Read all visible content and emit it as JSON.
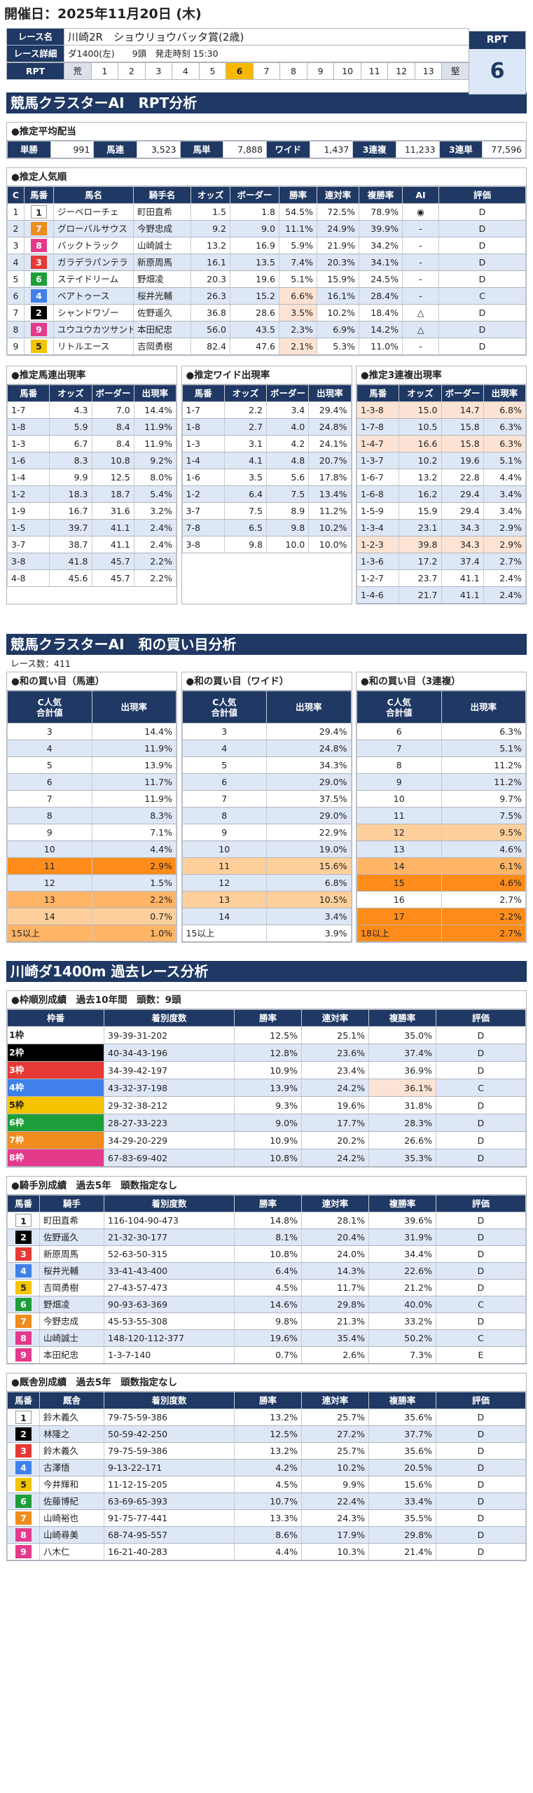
{
  "page": {
    "date": "開催日：2025年11月20日 (木)"
  },
  "race": {
    "name_label": "レース名",
    "name": "川崎2R　ショウリョウバッタ賞(2歳)",
    "detail_label": "レース詳細",
    "course": "ダ1400(左)",
    "count": "9頭",
    "start": "発走時刻 15:30",
    "rpt_label": "RPT",
    "rpt_scale": [
      "荒",
      "1",
      "2",
      "3",
      "4",
      "5",
      "6",
      "7",
      "8",
      "9",
      "10",
      "11",
      "12",
      "13",
      "堅"
    ],
    "rpt_value": "6",
    "rpt_highlight": "6"
  },
  "rpt_section": {
    "title": "競馬クラスターAI　RPT分析",
    "payout": {
      "title": "●推定平均配当",
      "items": [
        {
          "label": "単勝",
          "value": "991"
        },
        {
          "label": "馬連",
          "value": "3,523"
        },
        {
          "label": "馬単",
          "value": "7,888"
        },
        {
          "label": "ワイド",
          "value": "1,437"
        },
        {
          "label": "3連複",
          "value": "11,233"
        },
        {
          "label": "3連単",
          "value": "77,596"
        }
      ]
    },
    "popularity": {
      "title": "●推定人気順",
      "headers": [
        "C",
        "馬番",
        "馬名",
        "騎手名",
        "オッズ",
        "ボーダー",
        "勝率",
        "連対率",
        "複勝率",
        "AI",
        "評価"
      ],
      "rows": [
        {
          "c": "1",
          "w": 1,
          "no": "1",
          "name": "ジーベローチェ",
          "jockey": "町田直希",
          "odds": "1.5",
          "border": "1.8",
          "win": "54.5%",
          "ren": "72.5%",
          "fuku": "78.9%",
          "ai": "◉",
          "eval": "D",
          "pk": false
        },
        {
          "c": "2",
          "w": 7,
          "no": "7",
          "name": "グローバルサウス",
          "jockey": "今野忠成",
          "odds": "9.2",
          "border": "9.0",
          "win": "11.1%",
          "ren": "24.9%",
          "fuku": "39.9%",
          "ai": "-",
          "eval": "D",
          "pk": false
        },
        {
          "c": "3",
          "w": 8,
          "no": "8",
          "name": "バックトラック",
          "jockey": "山崎誠士",
          "odds": "13.2",
          "border": "16.9",
          "win": "5.9%",
          "ren": "21.9%",
          "fuku": "34.2%",
          "ai": "-",
          "eval": "D",
          "pk": false
        },
        {
          "c": "4",
          "w": 3,
          "no": "3",
          "name": "ガラデラパンテラ",
          "jockey": "新原周馬",
          "odds": "16.1",
          "border": "13.5",
          "win": "7.4%",
          "ren": "20.3%",
          "fuku": "34.1%",
          "ai": "-",
          "eval": "D",
          "pk": false
        },
        {
          "c": "5",
          "w": 6,
          "no": "6",
          "name": "ステイドリーム",
          "jockey": "野畑凌",
          "odds": "20.3",
          "border": "19.6",
          "win": "5.1%",
          "ren": "15.9%",
          "fuku": "24.5%",
          "ai": "-",
          "eval": "D",
          "pk": false
        },
        {
          "c": "6",
          "w": 4,
          "no": "4",
          "name": "ベアトゥース",
          "jockey": "桜井光輔",
          "odds": "26.3",
          "border": "15.2",
          "win": "6.6%",
          "ren": "16.1%",
          "fuku": "28.4%",
          "ai": "-",
          "eval": "C",
          "pk": true
        },
        {
          "c": "7",
          "w": 2,
          "no": "2",
          "name": "シャンドワゾー",
          "jockey": "佐野遥久",
          "odds": "36.8",
          "border": "28.6",
          "win": "3.5%",
          "ren": "10.2%",
          "fuku": "18.4%",
          "ai": "△",
          "eval": "D",
          "pk": true
        },
        {
          "c": "8",
          "w": 8,
          "no": "9",
          "name": "ユウユウカツサンド",
          "jockey": "本田紀忠",
          "odds": "56.0",
          "border": "43.5",
          "win": "2.3%",
          "ren": "6.9%",
          "fuku": "14.2%",
          "ai": "△",
          "eval": "D",
          "pk": false
        },
        {
          "c": "9",
          "w": 5,
          "no": "5",
          "name": "リトルエース",
          "jockey": "吉岡勇樹",
          "odds": "82.4",
          "border": "47.6",
          "win": "2.1%",
          "ren": "5.3%",
          "fuku": "11.0%",
          "ai": "-",
          "eval": "D",
          "pk": true
        }
      ]
    },
    "umaren": {
      "title": "●推定馬連出現率",
      "headers": [
        "馬番",
        "オッズ",
        "ボーダー",
        "出現率"
      ],
      "rows": [
        [
          "1-7",
          "4.3",
          "7.0",
          "14.4%"
        ],
        [
          "1-8",
          "5.9",
          "8.4",
          "11.9%"
        ],
        [
          "1-3",
          "6.7",
          "8.4",
          "11.9%"
        ],
        [
          "1-6",
          "8.3",
          "10.8",
          "9.2%"
        ],
        [
          "1-4",
          "9.9",
          "12.5",
          "8.0%"
        ],
        [
          "1-2",
          "18.3",
          "18.7",
          "5.4%"
        ],
        [
          "1-9",
          "16.7",
          "31.6",
          "3.2%"
        ],
        [
          "1-5",
          "39.7",
          "41.1",
          "2.4%"
        ],
        [
          "3-7",
          "38.7",
          "41.1",
          "2.4%"
        ],
        [
          "3-8",
          "41.8",
          "45.7",
          "2.2%"
        ],
        [
          "4-8",
          "45.6",
          "45.7",
          "2.2%"
        ]
      ]
    },
    "wide": {
      "title": "●推定ワイド出現率",
      "headers": [
        "馬番",
        "オッズ",
        "ボーダー",
        "出現率"
      ],
      "rows": [
        [
          "1-7",
          "2.2",
          "3.4",
          "29.4%"
        ],
        [
          "1-8",
          "2.7",
          "4.0",
          "24.8%"
        ],
        [
          "1-3",
          "3.1",
          "4.2",
          "24.1%"
        ],
        [
          "1-4",
          "4.1",
          "4.8",
          "20.7%"
        ],
        [
          "1-6",
          "3.5",
          "5.6",
          "17.8%"
        ],
        [
          "1-2",
          "6.4",
          "7.5",
          "13.4%"
        ],
        [
          "3-7",
          "7.5",
          "8.9",
          "11.2%"
        ],
        [
          "7-8",
          "6.5",
          "9.8",
          "10.2%"
        ],
        [
          "3-8",
          "9.8",
          "10.0",
          "10.0%"
        ]
      ]
    },
    "trio": {
      "title": "●推定3連複出現率",
      "headers": [
        "馬番",
        "オッズ",
        "ボーダー",
        "出現率"
      ],
      "rows": [
        [
          "1-3-8",
          "15.0",
          "14.7",
          "6.8%",
          true
        ],
        [
          "1-7-8",
          "10.5",
          "15.8",
          "6.3%",
          false
        ],
        [
          "1-4-7",
          "16.6",
          "15.8",
          "6.3%",
          true
        ],
        [
          "1-3-7",
          "10.2",
          "19.6",
          "5.1%",
          false
        ],
        [
          "1-6-7",
          "13.2",
          "22.8",
          "4.4%",
          false
        ],
        [
          "1-6-8",
          "16.2",
          "29.4",
          "3.4%",
          false
        ],
        [
          "1-5-9",
          "15.9",
          "29.4",
          "3.4%",
          false
        ],
        [
          "1-3-4",
          "23.1",
          "34.3",
          "2.9%",
          false
        ],
        [
          "1-2-3",
          "39.8",
          "34.3",
          "2.9%",
          true
        ],
        [
          "1-3-6",
          "17.2",
          "37.4",
          "2.7%",
          false
        ],
        [
          "1-2-7",
          "23.7",
          "41.1",
          "2.4%",
          false
        ],
        [
          "1-4-6",
          "21.7",
          "41.1",
          "2.4%",
          false
        ]
      ]
    }
  },
  "wa_section": {
    "title": "競馬クラスターAI　和の買い目分析",
    "race_count": "レース数：411",
    "headers": [
      "C人気\n合計値",
      "出現率"
    ],
    "umaren": {
      "title": "●和の買い目（馬連）",
      "rows": [
        [
          "3",
          "14.4%",
          ""
        ],
        [
          "4",
          "11.9%",
          ""
        ],
        [
          "5",
          "13.9%",
          ""
        ],
        [
          "6",
          "11.7%",
          ""
        ],
        [
          "7",
          "11.9%",
          ""
        ],
        [
          "8",
          "8.3%",
          ""
        ],
        [
          "9",
          "7.1%",
          ""
        ],
        [
          "10",
          "4.4%",
          ""
        ],
        [
          "11",
          "2.9%",
          "org"
        ],
        [
          "12",
          "1.5%",
          ""
        ],
        [
          "13",
          "2.2%",
          "mor"
        ],
        [
          "14",
          "0.7%",
          "lor"
        ],
        [
          "15以上",
          "1.0%",
          "mor"
        ]
      ]
    },
    "wide": {
      "title": "●和の買い目（ワイド）",
      "rows": [
        [
          "3",
          "29.4%",
          ""
        ],
        [
          "4",
          "24.8%",
          ""
        ],
        [
          "5",
          "34.3%",
          ""
        ],
        [
          "6",
          "29.0%",
          ""
        ],
        [
          "7",
          "37.5%",
          ""
        ],
        [
          "8",
          "29.0%",
          ""
        ],
        [
          "9",
          "22.9%",
          ""
        ],
        [
          "10",
          "19.0%",
          ""
        ],
        [
          "11",
          "15.6%",
          "lor"
        ],
        [
          "12",
          "6.8%",
          ""
        ],
        [
          "13",
          "10.5%",
          "lor"
        ],
        [
          "14",
          "3.4%",
          ""
        ],
        [
          "15以上",
          "3.9%",
          ""
        ]
      ]
    },
    "trio": {
      "title": "●和の買い目（3連複）",
      "rows": [
        [
          "6",
          "6.3%",
          ""
        ],
        [
          "7",
          "5.1%",
          ""
        ],
        [
          "8",
          "11.2%",
          ""
        ],
        [
          "9",
          "11.2%",
          ""
        ],
        [
          "10",
          "9.7%",
          ""
        ],
        [
          "11",
          "7.5%",
          ""
        ],
        [
          "12",
          "9.5%",
          "lor"
        ],
        [
          "13",
          "4.6%",
          ""
        ],
        [
          "14",
          "6.1%",
          "mor"
        ],
        [
          "15",
          "4.6%",
          "org"
        ],
        [
          "16",
          "2.7%",
          ""
        ],
        [
          "17",
          "2.2%",
          "org"
        ],
        [
          "18以上",
          "2.7%",
          "org"
        ]
      ]
    }
  },
  "past_section": {
    "title": "川崎ダ1400m 過去レース分析",
    "waku": {
      "title": "●枠順別成績　過去10年間　頭数：9頭",
      "headers": [
        "枠番",
        "着別度数",
        "勝率",
        "連対率",
        "複勝率",
        "評価"
      ],
      "rows": [
        [
          "1枠",
          "39-39-31-202",
          "12.5%",
          "25.1%",
          "35.0%",
          "D",
          1,
          false
        ],
        [
          "2枠",
          "40-34-43-196",
          "12.8%",
          "23.6%",
          "37.4%",
          "D",
          2,
          false
        ],
        [
          "3枠",
          "34-39-42-197",
          "10.9%",
          "23.4%",
          "36.9%",
          "D",
          3,
          false
        ],
        [
          "4枠",
          "43-32-37-198",
          "13.9%",
          "24.2%",
          "36.1%",
          "C",
          4,
          true
        ],
        [
          "5枠",
          "29-32-38-212",
          "9.3%",
          "19.6%",
          "31.8%",
          "D",
          5,
          false
        ],
        [
          "6枠",
          "28-27-33-223",
          "9.0%",
          "17.7%",
          "28.3%",
          "D",
          6,
          false
        ],
        [
          "7枠",
          "34-29-20-229",
          "10.9%",
          "20.2%",
          "26.6%",
          "D",
          7,
          false
        ],
        [
          "8枠",
          "67-83-69-402",
          "10.8%",
          "24.2%",
          "35.3%",
          "D",
          8,
          false
        ]
      ]
    },
    "jockey": {
      "title": "●騎手別成績　過去5年　頭数指定なし",
      "headers": [
        "馬番",
        "騎手",
        "着別度数",
        "勝率",
        "連対率",
        "複勝率",
        "評価"
      ],
      "rows": [
        [
          "1",
          "町田直希",
          "116-104-90-473",
          "14.8%",
          "28.1%",
          "39.6%",
          "D",
          1
        ],
        [
          "2",
          "佐野遥久",
          "21-32-30-177",
          "8.1%",
          "20.4%",
          "31.9%",
          "D",
          2
        ],
        [
          "3",
          "新原周馬",
          "52-63-50-315",
          "10.8%",
          "24.0%",
          "34.4%",
          "D",
          3
        ],
        [
          "4",
          "桜井光輔",
          "33-41-43-400",
          "6.4%",
          "14.3%",
          "22.6%",
          "D",
          4
        ],
        [
          "5",
          "吉岡勇樹",
          "27-43-57-473",
          "4.5%",
          "11.7%",
          "21.2%",
          "D",
          5
        ],
        [
          "6",
          "野畑凌",
          "90-93-63-369",
          "14.6%",
          "29.8%",
          "40.0%",
          "C",
          6
        ],
        [
          "7",
          "今野忠成",
          "45-53-55-308",
          "9.8%",
          "21.3%",
          "33.2%",
          "D",
          7
        ],
        [
          "8",
          "山崎誠士",
          "148-120-112-377",
          "19.6%",
          "35.4%",
          "50.2%",
          "C",
          8
        ],
        [
          "9",
          "本田紀忠",
          "1-3-7-140",
          "0.7%",
          "2.6%",
          "7.3%",
          "E",
          8
        ]
      ]
    },
    "trainer": {
      "title": "●厩舎別成績　過去5年　頭数指定なし",
      "headers": [
        "馬番",
        "厩舎",
        "着別度数",
        "勝率",
        "連対率",
        "複勝率",
        "評価"
      ],
      "rows": [
        [
          "1",
          "鈴木義久",
          "79-75-59-386",
          "13.2%",
          "25.7%",
          "35.6%",
          "D",
          1
        ],
        [
          "2",
          "林隆之",
          "50-59-42-250",
          "12.5%",
          "27.2%",
          "37.7%",
          "D",
          2
        ],
        [
          "3",
          "鈴木義久",
          "79-75-59-386",
          "13.2%",
          "25.7%",
          "35.6%",
          "D",
          3
        ],
        [
          "4",
          "古澤悟",
          "9-13-22-171",
          "4.2%",
          "10.2%",
          "20.5%",
          "D",
          4
        ],
        [
          "5",
          "今井輝和",
          "11-12-15-205",
          "4.5%",
          "9.9%",
          "15.6%",
          "D",
          5
        ],
        [
          "6",
          "佐藤博紀",
          "63-69-65-393",
          "10.7%",
          "22.4%",
          "33.4%",
          "D",
          6
        ],
        [
          "7",
          "山崎裕也",
          "91-75-77-441",
          "13.3%",
          "24.3%",
          "35.5%",
          "D",
          7
        ],
        [
          "8",
          "山崎尋美",
          "68-74-95-557",
          "8.6%",
          "17.9%",
          "29.8%",
          "D",
          8
        ],
        [
          "9",
          "八木仁",
          "16-21-40-283",
          "4.4%",
          "10.3%",
          "21.4%",
          "D",
          8
        ]
      ]
    }
  }
}
